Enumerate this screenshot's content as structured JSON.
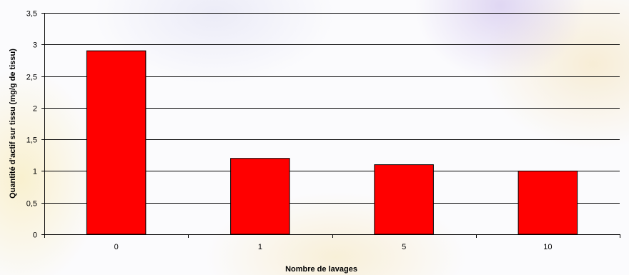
{
  "chart_data": {
    "type": "bar",
    "categories": [
      "0",
      "1",
      "5",
      "10"
    ],
    "values": [
      2.9,
      1.2,
      1.1,
      1.0
    ],
    "title": "",
    "xlabel": "Nombre de lavages",
    "ylabel": "Quantité d'actif sur tissu (mg/g de tissu)",
    "ylim": [
      0,
      3.5
    ],
    "yticks": [
      0,
      0.5,
      1,
      1.5,
      2,
      2.5,
      3,
      3.5
    ],
    "ytick_labels": [
      "0",
      "0,5",
      "1",
      "1,5",
      "2",
      "2,5",
      "3",
      "3,5"
    ],
    "grid": true,
    "bar_color": "#ff0000",
    "bar_edge_color": "#000000"
  }
}
